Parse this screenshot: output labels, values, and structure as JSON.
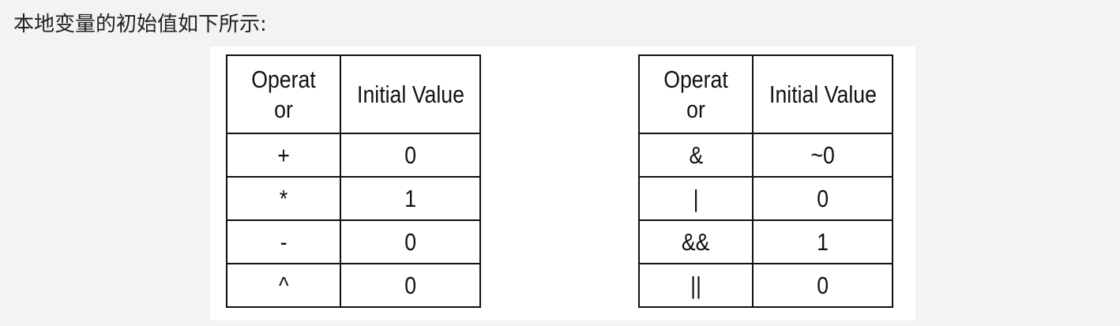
{
  "heading": "本地变量的初始值如下所示:",
  "left_table": {
    "headers": [
      "Operator",
      "Initial Value"
    ],
    "rows": [
      {
        "operator": "+",
        "value": "0"
      },
      {
        "operator": "*",
        "value": "1"
      },
      {
        "operator": "-",
        "value": "0"
      },
      {
        "operator": "^",
        "value": "0"
      }
    ]
  },
  "right_table": {
    "headers": [
      "Operator",
      "Initial Value"
    ],
    "rows": [
      {
        "operator": "&",
        "value": "~0"
      },
      {
        "operator": "|",
        "value": "0"
      },
      {
        "operator": "&&",
        "value": "1"
      },
      {
        "operator": "||",
        "value": "0"
      }
    ]
  }
}
